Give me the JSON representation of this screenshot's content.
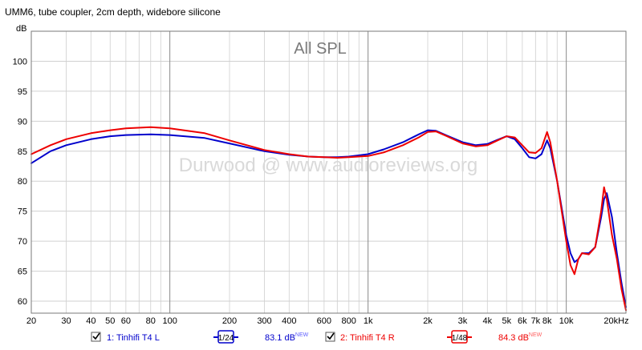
{
  "window_title": "UMM6, tube coupler, 2cm depth, widebore silicone",
  "chart_data": {
    "type": "line",
    "title": "UMM6, tube coupler, 2cm depth, widebore silicone",
    "plot_heading": "All SPL",
    "watermark": "Durwood @ www.audioreviews.org",
    "ylabel": "dB",
    "xscale": "log",
    "xlim": [
      20,
      20000
    ],
    "ylim": [
      58,
      105
    ],
    "grid": true,
    "x_tick_labels": [
      {
        "v": 20,
        "t": "20"
      },
      {
        "v": 30,
        "t": "30"
      },
      {
        "v": 40,
        "t": "40"
      },
      {
        "v": 50,
        "t": "50"
      },
      {
        "v": 60,
        "t": "60"
      },
      {
        "v": 80,
        "t": "80"
      },
      {
        "v": 100,
        "t": "100"
      },
      {
        "v": 200,
        "t": "200"
      },
      {
        "v": 300,
        "t": "300"
      },
      {
        "v": 400,
        "t": "400"
      },
      {
        "v": 600,
        "t": "600"
      },
      {
        "v": 800,
        "t": "800"
      },
      {
        "v": 1000,
        "t": "1k"
      },
      {
        "v": 2000,
        "t": "2k"
      },
      {
        "v": 3000,
        "t": "3k"
      },
      {
        "v": 4000,
        "t": "4k"
      },
      {
        "v": 5000,
        "t": "5k"
      },
      {
        "v": 6000,
        "t": "6k"
      },
      {
        "v": 7000,
        "t": "7k"
      },
      {
        "v": 8000,
        "t": "8k"
      },
      {
        "v": 10000,
        "t": "10k"
      },
      {
        "v": 20000,
        "t": "20kHz"
      }
    ],
    "y_ticks": [
      60,
      65,
      70,
      75,
      80,
      85,
      90,
      95,
      100
    ],
    "series": [
      {
        "name": "1: Tinhifi T4 L",
        "color": "#0000cc",
        "smoothing": "1/24",
        "level": "83.1 dB",
        "x": [
          20,
          25,
          30,
          40,
          50,
          60,
          80,
          100,
          150,
          200,
          300,
          400,
          500,
          600,
          700,
          800,
          1000,
          1200,
          1500,
          1800,
          2000,
          2200,
          2500,
          3000,
          3500,
          4000,
          4500,
          5000,
          5500,
          6000,
          6500,
          7000,
          7500,
          8000,
          8300,
          9000,
          10000,
          10500,
          11000,
          11500,
          12000,
          13000,
          14000,
          15000,
          15500,
          16000,
          17000,
          18000,
          19000,
          20000
        ],
        "y": [
          83.0,
          85.0,
          86.0,
          87.0,
          87.5,
          87.7,
          87.8,
          87.7,
          87.2,
          86.3,
          85.0,
          84.4,
          84.1,
          84.0,
          84.0,
          84.1,
          84.5,
          85.3,
          86.5,
          87.8,
          88.5,
          88.4,
          87.6,
          86.5,
          86.0,
          86.2,
          86.9,
          87.5,
          87.0,
          85.5,
          84.0,
          83.8,
          84.5,
          86.8,
          85.5,
          80.0,
          71.0,
          68.0,
          66.5,
          67.0,
          68.0,
          68.0,
          69.0,
          74.0,
          77.0,
          78.0,
          74.0,
          68.0,
          63.0,
          59.0
        ]
      },
      {
        "name": "2: Tinhifi T4 R",
        "color": "#ee0000",
        "smoothing": "1/48",
        "level": "84.3 dB",
        "x": [
          20,
          25,
          30,
          40,
          50,
          60,
          80,
          100,
          150,
          200,
          300,
          400,
          500,
          600,
          700,
          800,
          1000,
          1200,
          1500,
          1800,
          2000,
          2200,
          2500,
          3000,
          3500,
          4000,
          4500,
          5000,
          5500,
          6000,
          6500,
          7000,
          7500,
          8000,
          8300,
          9000,
          10000,
          10500,
          11000,
          11500,
          12000,
          13000,
          14000,
          15000,
          15500,
          16000,
          17000,
          18000,
          19000,
          20000
        ],
        "y": [
          84.5,
          86.0,
          87.0,
          88.0,
          88.5,
          88.8,
          89.0,
          88.8,
          88.0,
          86.8,
          85.2,
          84.5,
          84.1,
          84.0,
          83.9,
          84.0,
          84.2,
          84.8,
          86.0,
          87.3,
          88.2,
          88.3,
          87.5,
          86.3,
          85.8,
          86.0,
          86.8,
          87.5,
          87.3,
          86.0,
          84.8,
          84.7,
          85.5,
          88.2,
          86.5,
          80.0,
          70.0,
          66.0,
          64.5,
          67.0,
          68.0,
          67.8,
          69.0,
          75.0,
          79.0,
          77.0,
          71.0,
          67.0,
          62.0,
          58.5
        ]
      }
    ]
  },
  "legend": [
    {
      "checked": true,
      "label": "1: Tinhifi T4 L",
      "color": "#0000cc",
      "smoothing": "1/24",
      "level": "83.1 dB",
      "badge": "NEW"
    },
    {
      "checked": true,
      "label": "2: Tinhifi T4 R",
      "color": "#ee0000",
      "smoothing": "1/48",
      "level": "84.3 dB",
      "badge": "NEW"
    }
  ]
}
